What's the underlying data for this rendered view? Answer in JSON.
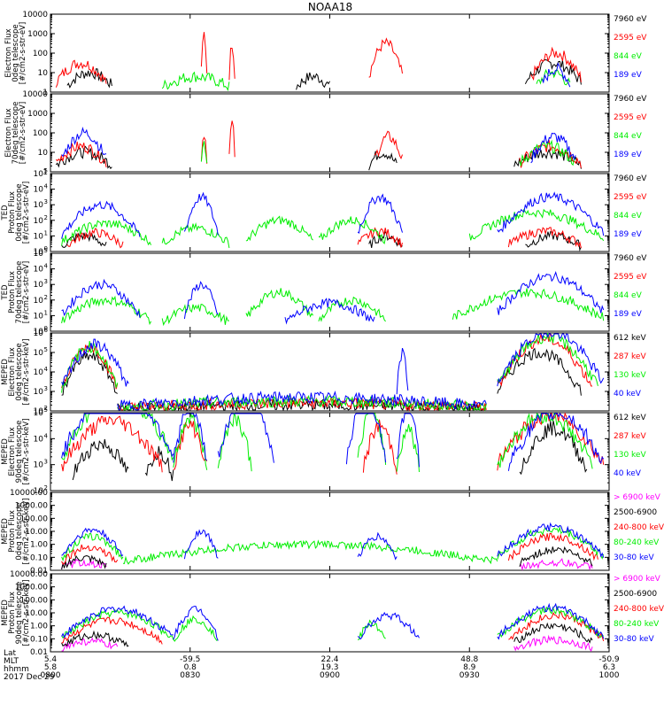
{
  "title": "NOAA18",
  "colors": {
    "black": "#000000",
    "red": "#ff0000",
    "green": "#00ee00",
    "blue": "#0000ff",
    "magenta": "#ff00ff"
  },
  "footer": {
    "row_labels": [
      "Lat",
      "MLT",
      "hhmm",
      "2017 Dec 29"
    ],
    "ticks": [
      {
        "lat": "5.4",
        "mlt": "5.8",
        "hhmm": "0800"
      },
      {
        "lat": "-59.5",
        "mlt": "0.8",
        "hhmm": "0830"
      },
      {
        "lat": "22.4",
        "mlt": "19.3",
        "hhmm": "0900"
      },
      {
        "lat": "48.8",
        "mlt": "8.9",
        "hhmm": "0930"
      },
      {
        "lat": "-50.9",
        "mlt": "6.3",
        "hhmm": "1000"
      }
    ]
  },
  "chart_data": [
    {
      "type": "line",
      "xlim": [
        "0800",
        "1000"
      ],
      "log_y": true,
      "ylabel": [
        "Electron Flux",
        "0deg telescope",
        "[#/cm2-s-str-eV]"
      ],
      "yticks": [
        "1",
        "10",
        "100",
        "1000",
        "10000"
      ],
      "legend": [
        {
          "label": "7960 eV",
          "color": "black"
        },
        {
          "label": "2595 eV",
          "color": "red"
        },
        {
          "label": "844 eV",
          "color": "green"
        },
        {
          "label": "189 eV",
          "color": "blue"
        }
      ],
      "series": [
        {
          "color": "black",
          "y": [
            [
              0.03,
              0.11,
              1
            ],
            [
              0.44,
              0.5,
              0.8
            ],
            [
              0.85,
              0.95,
              1.5
            ]
          ]
        },
        {
          "color": "red",
          "y": [
            [
              0.01,
              0.1,
              1.5
            ],
            [
              0.27,
              0.28,
              3
            ],
            [
              0.32,
              0.33,
              2.5
            ],
            [
              0.57,
              0.63,
              2.5
            ],
            [
              0.86,
              0.95,
              2
            ]
          ]
        },
        {
          "color": "green",
          "y": [
            [
              0.2,
              0.32,
              0.8
            ],
            [
              0.87,
              0.93,
              1
            ]
          ]
        },
        {
          "color": "blue",
          "y": [
            [
              0.88,
              0.93,
              1.2
            ]
          ]
        }
      ]
    },
    {
      "type": "line",
      "xlim": [
        "0800",
        "1000"
      ],
      "log_y": true,
      "ylabel": [
        "Electron Flux",
        "70deg telescope",
        "[#/cm2-s-str-eV]"
      ],
      "yticks": [
        "1",
        "10",
        "100",
        "1000",
        "10000"
      ],
      "legend": [
        {
          "label": "7960 eV",
          "color": "black"
        },
        {
          "label": "2595 eV",
          "color": "red"
        },
        {
          "label": "844 eV",
          "color": "green"
        },
        {
          "label": "189 eV",
          "color": "blue"
        }
      ],
      "series": [
        {
          "color": "black",
          "y": [
            [
              0.01,
              0.11,
              1
            ],
            [
              0.57,
              0.62,
              1
            ],
            [
              0.83,
              0.95,
              1
            ]
          ]
        },
        {
          "color": "red",
          "y": [
            [
              0.01,
              0.1,
              1.3
            ],
            [
              0.27,
              0.28,
              2
            ],
            [
              0.32,
              0.33,
              2.5
            ],
            [
              0.58,
              0.63,
              1.8
            ],
            [
              0.84,
              0.95,
              1.3
            ]
          ]
        },
        {
          "color": "green",
          "y": [
            [
              0.27,
              0.28,
              1.3
            ],
            [
              0.84,
              0.94,
              1.3
            ]
          ]
        },
        {
          "color": "blue",
          "y": [
            [
              0.02,
              0.1,
              2
            ],
            [
              0.86,
              0.94,
              1.8
            ]
          ]
        }
      ]
    },
    {
      "type": "line",
      "xlim": [
        "0800",
        "1000"
      ],
      "log_y": true,
      "ylabel": [
        "TED",
        "Proton Flux",
        "0deg telescope",
        "[#/cm2-s-str-eV]"
      ],
      "yticks": [
        "10^0",
        "10^1",
        "10^2",
        "10^3",
        "10^4",
        "10^5"
      ],
      "legend": [
        {
          "label": "7960 eV",
          "color": "black"
        },
        {
          "label": "2595 eV",
          "color": "red"
        },
        {
          "label": "844 eV",
          "color": "green"
        },
        {
          "label": "189 eV",
          "color": "blue"
        }
      ],
      "series": [
        {
          "color": "black",
          "y": [
            [
              0.02,
              0.1,
              1
            ],
            [
              0.57,
              0.63,
              1
            ],
            [
              0.85,
              0.95,
              1
            ]
          ]
        },
        {
          "color": "red",
          "y": [
            [
              0.03,
              0.13,
              1.2
            ],
            [
              0.55,
              0.63,
              1.3
            ],
            [
              0.82,
              0.95,
              1.3
            ]
          ]
        },
        {
          "color": "green",
          "y": [
            [
              0.02,
              0.18,
              1.8
            ],
            [
              0.2,
              0.32,
              1.5
            ],
            [
              0.35,
              0.47,
              2
            ],
            [
              0.48,
              0.6,
              2
            ],
            [
              0.75,
              0.99,
              2.5
            ]
          ]
        },
        {
          "color": "blue",
          "y": [
            [
              0.02,
              0.16,
              3
            ],
            [
              0.24,
              0.3,
              3.5
            ],
            [
              0.55,
              0.63,
              3.5
            ],
            [
              0.8,
              0.99,
              3.5
            ]
          ]
        }
      ]
    },
    {
      "type": "line",
      "xlim": [
        "0800",
        "1000"
      ],
      "log_y": true,
      "ylabel": [
        "TED",
        "Proton Flux",
        "70deg telescope",
        "[#/cm2-s-str-eV]"
      ],
      "yticks": [
        "10^0",
        "10^1",
        "10^2",
        "10^3",
        "10^4",
        "10^5"
      ],
      "legend": [
        {
          "label": "7960 eV",
          "color": "black"
        },
        {
          "label": "2595 eV",
          "color": "red"
        },
        {
          "label": "844 eV",
          "color": "green"
        },
        {
          "label": "189 eV",
          "color": "blue"
        }
      ],
      "series": [
        {
          "color": "green",
          "y": [
            [
              0.02,
              0.18,
              2
            ],
            [
              0.2,
              0.32,
              1.5
            ],
            [
              0.35,
              0.47,
              2.5
            ],
            [
              0.48,
              0.6,
              2
            ],
            [
              0.72,
              0.99,
              2.5
            ]
          ]
        },
        {
          "color": "blue",
          "y": [
            [
              0.02,
              0.16,
              3
            ],
            [
              0.24,
              0.3,
              3
            ],
            [
              0.42,
              0.58,
              1.8
            ],
            [
              0.8,
              0.99,
              3.5
            ]
          ]
        }
      ]
    },
    {
      "type": "line",
      "xlim": [
        "0800",
        "1000"
      ],
      "log_y": true,
      "ylabel": [
        "MEPED",
        "Electron Flux",
        "0deg telescope",
        "[#/cm2-s-str-keV]"
      ],
      "yticks": [
        "10^2",
        "10^3",
        "10^4",
        "10^5",
        "10^6"
      ],
      "legend": [
        {
          "label": "612 keV",
          "color": "black"
        },
        {
          "label": "287 keV",
          "color": "red"
        },
        {
          "label": "130 keV",
          "color": "green"
        },
        {
          "label": "40 keV",
          "color": "blue"
        }
      ],
      "series": [
        {
          "color": "black",
          "y": [
            [
              0.02,
              0.12,
              2.8
            ],
            [
              0.12,
              0.78,
              0.3
            ],
            [
              0.8,
              0.95,
              3.0
            ]
          ]
        },
        {
          "color": "red",
          "y": [
            [
              0.02,
              0.12,
              3.3
            ],
            [
              0.12,
              0.78,
              0.4
            ],
            [
              0.8,
              0.97,
              3.7
            ]
          ]
        },
        {
          "color": "green",
          "y": [
            [
              0.02,
              0.12,
              3.3
            ],
            [
              0.12,
              0.78,
              0.5
            ],
            [
              0.8,
              0.98,
              3.8
            ]
          ]
        },
        {
          "color": "blue",
          "y": [
            [
              0.02,
              0.14,
              3.4
            ],
            [
              0.12,
              0.78,
              0.7
            ],
            [
              0.62,
              0.64,
              3.0
            ],
            [
              0.8,
              0.99,
              4.1
            ]
          ]
        }
      ]
    },
    {
      "type": "line",
      "xlim": [
        "0800",
        "1000"
      ],
      "log_y": true,
      "ylabel": [
        "MEPED",
        "Electron Flux",
        "90deg telescope",
        "[#/cm2-s-str-keV]"
      ],
      "yticks": [
        "10^2",
        "10^3",
        "10^4",
        "10^5"
      ],
      "legend": [
        {
          "label": "612 keV",
          "color": "black"
        },
        {
          "label": "287 keV",
          "color": "red"
        },
        {
          "label": "130 keV",
          "color": "green"
        },
        {
          "label": "40 keV",
          "color": "blue"
        }
      ],
      "series": [
        {
          "color": "black",
          "y": [
            [
              0.04,
              0.14,
              1.8
            ],
            [
              0.17,
              0.22,
              1.5
            ],
            [
              0.84,
              0.96,
              2.4
            ]
          ]
        },
        {
          "color": "red",
          "y": [
            [
              0.02,
              0.2,
              2.7
            ],
            [
              0.22,
              0.28,
              2.5
            ],
            [
              0.56,
              0.62,
              2.5
            ],
            [
              0.8,
              0.99,
              2.9
            ]
          ]
        },
        {
          "color": "green",
          "y": [
            [
              0.02,
              0.22,
              3.7
            ],
            [
              0.22,
              0.28,
              2.8
            ],
            [
              0.3,
              0.36,
              2.8
            ],
            [
              0.55,
              0.6,
              3.2
            ],
            [
              0.62,
              0.66,
              2.4
            ],
            [
              0.8,
              0.97,
              2.9
            ]
          ]
        },
        {
          "color": "blue",
          "y": [
            [
              0.02,
              0.22,
              4.0
            ],
            [
              0.22,
              0.28,
              3.2
            ],
            [
              0.3,
              0.4,
              3.7
            ],
            [
              0.53,
              0.6,
              3.6
            ],
            [
              0.62,
              0.66,
              3.3
            ],
            [
              0.82,
              0.99,
              3.0
            ]
          ]
        }
      ]
    },
    {
      "type": "line",
      "xlim": [
        "0800",
        "1000"
      ],
      "log_y": true,
      "ylabel": [
        "MEPED",
        "Proton Flux",
        "0deg telescope",
        "[#/cm2-s-str-keV]"
      ],
      "yticks": [
        "0.01",
        "0.10",
        "1.00",
        "10.00",
        "100.00",
        "1000.00",
        "10000.00"
      ],
      "legend": [
        {
          "label": "> 6900 keV",
          "color": "magenta"
        },
        {
          "label": "2500-6900",
          "color": "black"
        },
        {
          "label": "240-800 keV",
          "color": "red"
        },
        {
          "label": "80-240 keV",
          "color": "green"
        },
        {
          "label": "30-80 keV",
          "color": "blue"
        }
      ],
      "series": [
        {
          "color": "magenta",
          "y": [
            [
              0.02,
              0.1,
              0.6
            ],
            [
              0.84,
              0.97,
              0.6
            ]
          ]
        },
        {
          "color": "black",
          "y": [
            [
              0.02,
              0.1,
              0.9
            ],
            [
              0.84,
              0.97,
              1.6
            ]
          ]
        },
        {
          "color": "red",
          "y": [
            [
              0.02,
              0.12,
              1.8
            ],
            [
              0.82,
              0.98,
              2.6
            ]
          ]
        },
        {
          "color": "green",
          "y": [
            [
              0.02,
              0.13,
              2.6
            ],
            [
              0.13,
              0.8,
              2.0
            ],
            [
              0.8,
              0.99,
              3.1
            ]
          ]
        },
        {
          "color": "blue",
          "y": [
            [
              0.02,
              0.13,
              3.1
            ],
            [
              0.24,
              0.3,
              3.0
            ],
            [
              0.55,
              0.62,
              2.6
            ],
            [
              0.8,
              0.99,
              3.3
            ]
          ]
        }
      ]
    },
    {
      "type": "line",
      "xlim": [
        "0800",
        "1000"
      ],
      "log_y": true,
      "ylabel": [
        "MEPED",
        "Proton Flux",
        "90deg telescope",
        "[#/cm2-s-str-keV]"
      ],
      "yticks": [
        "0.01",
        "0.10",
        "1.00",
        "10.00",
        "100.00",
        "1000.00",
        "10000.00"
      ],
      "legend": [
        {
          "label": "> 6900 keV",
          "color": "magenta"
        },
        {
          "label": "2500-6900",
          "color": "black"
        },
        {
          "label": "240-800 keV",
          "color": "red"
        },
        {
          "label": "80-240 keV",
          "color": "green"
        },
        {
          "label": "30-80 keV",
          "color": "blue"
        }
      ],
      "series": [
        {
          "color": "magenta",
          "y": [
            [
              0.02,
              0.12,
              0.8
            ],
            [
              0.83,
              0.97,
              0.9
            ]
          ]
        },
        {
          "color": "black",
          "y": [
            [
              0.02,
              0.14,
              1.3
            ],
            [
              0.83,
              0.97,
              2.0
            ]
          ]
        },
        {
          "color": "red",
          "y": [
            [
              0.02,
              0.2,
              2.4
            ],
            [
              0.82,
              0.99,
              2.8
            ]
          ]
        },
        {
          "color": "green",
          "y": [
            [
              0.02,
              0.22,
              3.0
            ],
            [
              0.22,
              0.3,
              2.5
            ],
            [
              0.55,
              0.6,
              2.2
            ],
            [
              0.8,
              0.99,
              3.2
            ]
          ]
        },
        {
          "color": "blue",
          "y": [
            [
              0.02,
              0.22,
              3.3
            ],
            [
              0.22,
              0.3,
              3.3
            ],
            [
              0.55,
              0.66,
              2.8
            ],
            [
              0.8,
              0.99,
              3.4
            ]
          ]
        }
      ]
    }
  ]
}
